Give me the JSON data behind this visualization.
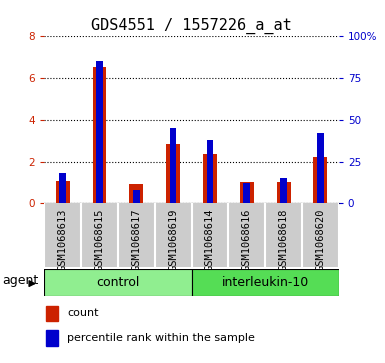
{
  "title": "GDS4551 / 1557226_a_at",
  "samples": [
    "GSM1068613",
    "GSM1068615",
    "GSM1068617",
    "GSM1068619",
    "GSM1068614",
    "GSM1068616",
    "GSM1068618",
    "GSM1068620"
  ],
  "count_values": [
    1.05,
    6.55,
    0.9,
    2.85,
    2.35,
    1.0,
    1.0,
    2.2
  ],
  "percentile_values": [
    18,
    85,
    8,
    45,
    38,
    12,
    15,
    42
  ],
  "groups": [
    {
      "label": "control",
      "start": 0,
      "end": 3,
      "color": "#90EE90"
    },
    {
      "label": "interleukin-10",
      "start": 4,
      "end": 7,
      "color": "#55DD55"
    }
  ],
  "group_label": "agent",
  "ylim_left": [
    0,
    8
  ],
  "ylim_right": [
    0,
    100
  ],
  "yticks_left": [
    0,
    2,
    4,
    6,
    8
  ],
  "yticks_right": [
    0,
    25,
    50,
    75,
    100
  ],
  "ytick_labels_right": [
    "0",
    "25",
    "50",
    "75",
    "100%"
  ],
  "count_color": "#CC2200",
  "percentile_color": "#0000CC",
  "sample_bg_color": "#CCCCCC",
  "plot_bg_color": "#FFFFFF",
  "title_fontsize": 11,
  "tick_fontsize": 7.5,
  "sample_fontsize": 7.5,
  "legend_fontsize": 8,
  "group_fontsize": 9,
  "group_label_fontsize": 9
}
